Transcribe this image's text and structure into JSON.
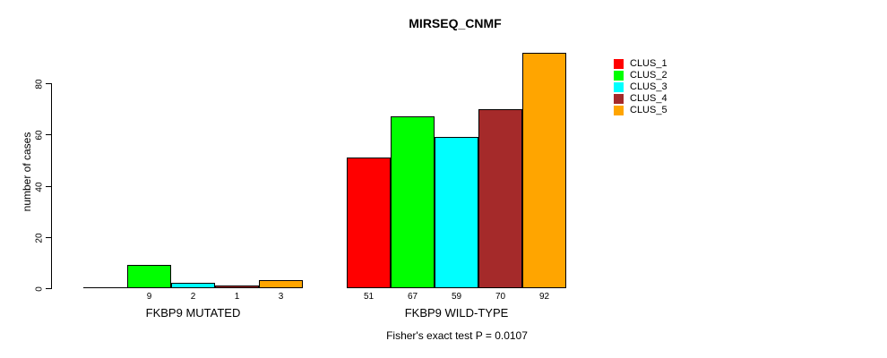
{
  "chart": {
    "title": "MIRSEQ_CNMF",
    "ylabel": "number of cases",
    "footnote": "Fisher's exact test P = 0.0107"
  },
  "colors": {
    "background": "#FFFFFF",
    "axis": "#000000",
    "bar_border": "#000000"
  },
  "chart_data": {
    "type": "bar",
    "title": "MIRSEQ_CNMF",
    "xlabel": "",
    "ylabel": "number of cases",
    "ylim": [
      0,
      92
    ],
    "yticks": [
      0,
      20,
      40,
      60,
      80
    ],
    "grid": false,
    "legend_position": "right-top",
    "categories": [
      "FKBP9 MUTATED",
      "FKBP9 WILD-TYPE"
    ],
    "series": [
      {
        "name": "CLUS_1",
        "color": "#FF0000",
        "values": [
          0,
          51
        ]
      },
      {
        "name": "CLUS_2",
        "color": "#00FF00",
        "values": [
          9,
          67
        ]
      },
      {
        "name": "CLUS_3",
        "color": "#00FFFF",
        "values": [
          2,
          59
        ]
      },
      {
        "name": "CLUS_4",
        "color": "#A52A2A",
        "values": [
          1,
          70
        ]
      },
      {
        "name": "CLUS_5",
        "color": "#FFA500",
        "values": [
          3,
          92
        ]
      }
    ],
    "bar_value_labels": [
      [
        "",
        "9",
        "2",
        "1",
        "3"
      ],
      [
        "51",
        "67",
        "59",
        "70",
        "92"
      ]
    ],
    "annotation": "Fisher's exact test P = 0.0107"
  }
}
